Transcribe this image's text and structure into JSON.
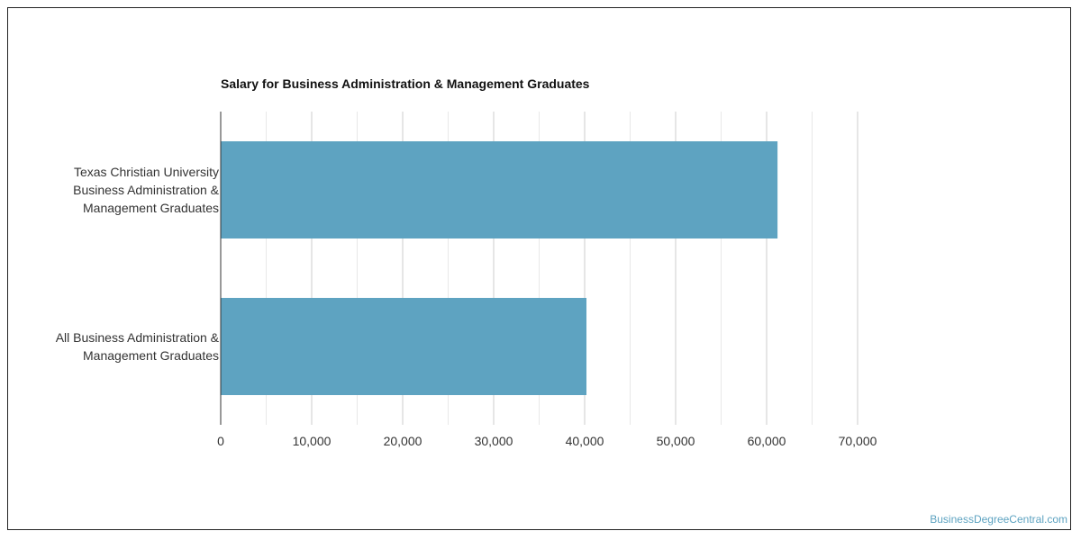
{
  "chart_data": {
    "type": "bar",
    "orientation": "horizontal",
    "title": "Salary for Business Administration & Management Graduates",
    "categories": [
      [
        "Texas Christian University",
        "Business Administration &",
        "Management Graduates"
      ],
      [
        "All Business Administration &",
        "Management Graduates"
      ]
    ],
    "values": [
      61200,
      40200
    ],
    "xlim": [
      0,
      70000
    ],
    "xticks": [
      0,
      10000,
      20000,
      30000,
      40000,
      50000,
      60000,
      70000
    ],
    "xtick_labels": [
      "0",
      "10,000",
      "20,000",
      "30,000",
      "40,000",
      "50,000",
      "60,000",
      "70,000"
    ],
    "grid": true,
    "bar_color": "#5ea3c1"
  },
  "watermark": "BusinessDegreeCentral.com"
}
